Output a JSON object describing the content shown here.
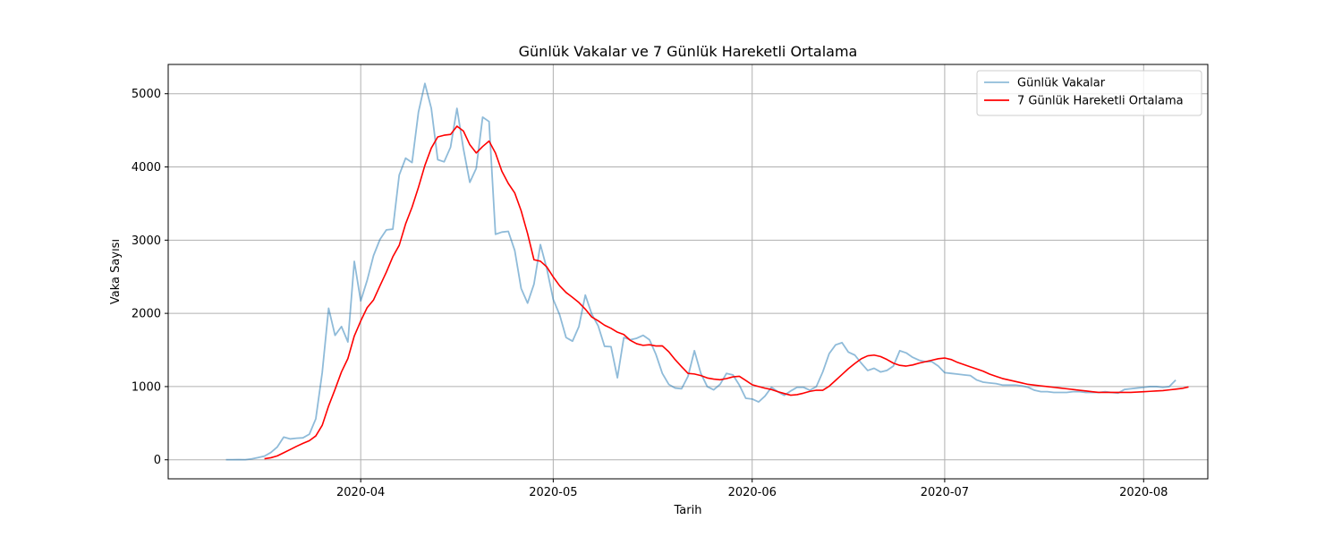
{
  "chart_data": {
    "type": "line",
    "title": "Günlük Vakalar ve 7 Günlük Hareketli Ortalama",
    "xlabel": "Tarih",
    "ylabel": "Vaka Sayısı",
    "xlim": [
      "2020-03-02",
      "2020-08-11"
    ],
    "ylim": [
      -260,
      5400
    ],
    "x_ticks": [
      "2020-04-01",
      "2020-05-01",
      "2020-06-01",
      "2020-07-01",
      "2020-08-01"
    ],
    "x_tick_labels": [
      "2020-04",
      "2020-05",
      "2020-06",
      "2020-07",
      "2020-08"
    ],
    "y_ticks": [
      0,
      1000,
      2000,
      3000,
      4000,
      5000
    ],
    "y_tick_labels": [
      "0",
      "1000",
      "2000",
      "3000",
      "4000",
      "5000"
    ],
    "grid": true,
    "legend_position": "top-right",
    "start_date": "2020-03-11",
    "series": [
      {
        "name": "Günlük Vakalar",
        "color": "#1f77b4",
        "opacity": 0.5,
        "values": [
          1,
          1,
          3,
          1,
          12,
          30,
          50,
          100,
          175,
          310,
          285,
          295,
          300,
          350,
          560,
          1190,
          2070,
          1700,
          1820,
          1610,
          2710,
          2170,
          2450,
          2790,
          3010,
          3140,
          3150,
          3890,
          4120,
          4060,
          4750,
          5140,
          4800,
          4100,
          4070,
          4270,
          4800,
          4250,
          3790,
          3980,
          4680,
          4620,
          3080,
          3110,
          3120,
          2860,
          2340,
          2140,
          2400,
          2940,
          2610,
          2190,
          1980,
          1670,
          1620,
          1820,
          2250,
          1990,
          1830,
          1550,
          1545,
          1120,
          1670,
          1640,
          1660,
          1700,
          1640,
          1440,
          1180,
          1030,
          980,
          970,
          1140,
          1490,
          1180,
          1000,
          955,
          1030,
          1180,
          1160,
          1020,
          840,
          830,
          790,
          870,
          990,
          930,
          880,
          940,
          990,
          990,
          950,
          1000,
          1200,
          1450,
          1570,
          1600,
          1470,
          1430,
          1320,
          1220,
          1250,
          1200,
          1220,
          1280,
          1490,
          1460,
          1400,
          1360,
          1340,
          1340,
          1280,
          1190,
          1180,
          1170,
          1160,
          1150,
          1090,
          1060,
          1050,
          1040,
          1020,
          1020,
          1020,
          1010,
          990,
          950,
          930,
          930,
          920,
          920,
          920,
          930,
          930,
          920,
          920,
          920,
          930,
          920,
          910,
          960,
          970,
          980,
          990,
          1000,
          1000,
          990,
          1000,
          1090
        ]
      },
      {
        "name": "7 Günlük Hareketli Ortalama",
        "color": "#ff0000",
        "values": [
          null,
          null,
          null,
          null,
          null,
          null,
          14,
          28,
          53,
          96,
          140,
          184,
          224,
          261,
          326,
          471,
          736,
          962,
          1200,
          1383,
          1691,
          1896,
          2078,
          2184,
          2377,
          2565,
          2773,
          2930,
          3223,
          3450,
          3722,
          4021,
          4258,
          4410,
          4433,
          4444,
          4557,
          4491,
          4304,
          4191,
          4279,
          4353,
          4190,
          3940,
          3774,
          3645,
          3401,
          3090,
          2732,
          2713,
          2634,
          2498,
          2377,
          2285,
          2219,
          2148,
          2058,
          1950,
          1898,
          1838,
          1796,
          1743,
          1711,
          1632,
          1585,
          1563,
          1571,
          1555,
          1556,
          1476,
          1368,
          1272,
          1180,
          1172,
          1150,
          1118,
          1102,
          1093,
          1109,
          1133,
          1140,
          1084,
          1025,
          1001,
          978,
          960,
          930,
          905,
          882,
          890,
          910,
          935,
          950,
          950,
          1005,
          1085,
          1165,
          1245,
          1315,
          1380,
          1420,
          1430,
          1410,
          1370,
          1320,
          1290,
          1280,
          1295,
          1320,
          1340,
          1360,
          1380,
          1390,
          1370,
          1330,
          1300,
          1270,
          1240,
          1210,
          1170,
          1140,
          1110,
          1090,
          1070,
          1050,
          1030,
          1020,
          1010,
          1000,
          990,
          980,
          970,
          960,
          950,
          940,
          930,
          920,
          920,
          920,
          920,
          920,
          920,
          925,
          930,
          935,
          940,
          945,
          955,
          965,
          975,
          995
        ]
      }
    ]
  }
}
